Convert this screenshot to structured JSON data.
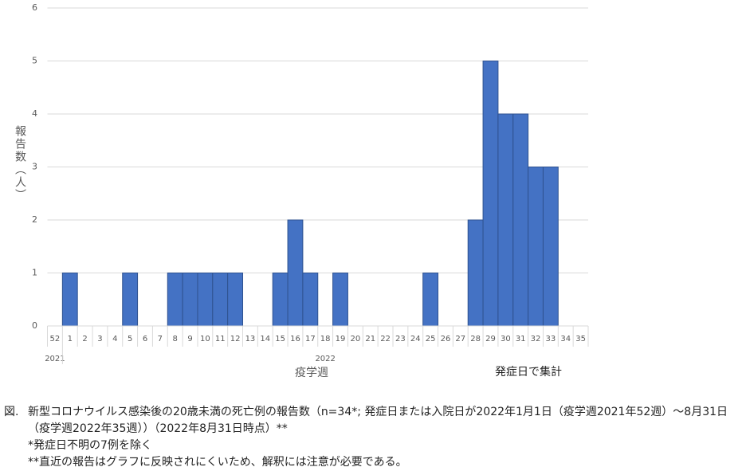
{
  "chart_data": {
    "type": "bar",
    "y_label": "報告数（人）",
    "x_label": "疫学週",
    "annotation": "発症日で集計",
    "categories": [
      "52",
      "1",
      "2",
      "3",
      "4",
      "5",
      "6",
      "7",
      "8",
      "9",
      "10",
      "11",
      "12",
      "13",
      "14",
      "15",
      "16",
      "17",
      "18",
      "19",
      "20",
      "21",
      "22",
      "23",
      "24",
      "25",
      "26",
      "27",
      "28",
      "29",
      "30",
      "31",
      "32",
      "33",
      "34",
      "35"
    ],
    "values": [
      0,
      1,
      0,
      0,
      0,
      1,
      0,
      0,
      1,
      1,
      1,
      1,
      1,
      0,
      0,
      1,
      2,
      1,
      0,
      1,
      0,
      0,
      0,
      0,
      0,
      1,
      0,
      0,
      2,
      5,
      4,
      4,
      3,
      3,
      0,
      0
    ],
    "groups": [
      {
        "label": "2021",
        "categories": 1
      },
      {
        "label": "2022",
        "categories": 35
      }
    ],
    "color": "#4472c4",
    "ylim": [
      0,
      6
    ],
    "yticks": [
      0,
      1,
      2,
      3,
      4,
      5,
      6
    ],
    "grid": true
  },
  "caption": {
    "label": "図.",
    "text": "新型コロナウイルス感染後の20歳未満の死亡例の報告数（n=34*; 発症日または入院日が2022年1月1日（疫学週2021年52週）～8月31日（疫学週2022年35週））（2022年8月31日時点）**",
    "notes": [
      "*発症日不明の7例を除く",
      "**直近の報告はグラフに反映されにくいため、解釈には注意が必要である。"
    ]
  }
}
